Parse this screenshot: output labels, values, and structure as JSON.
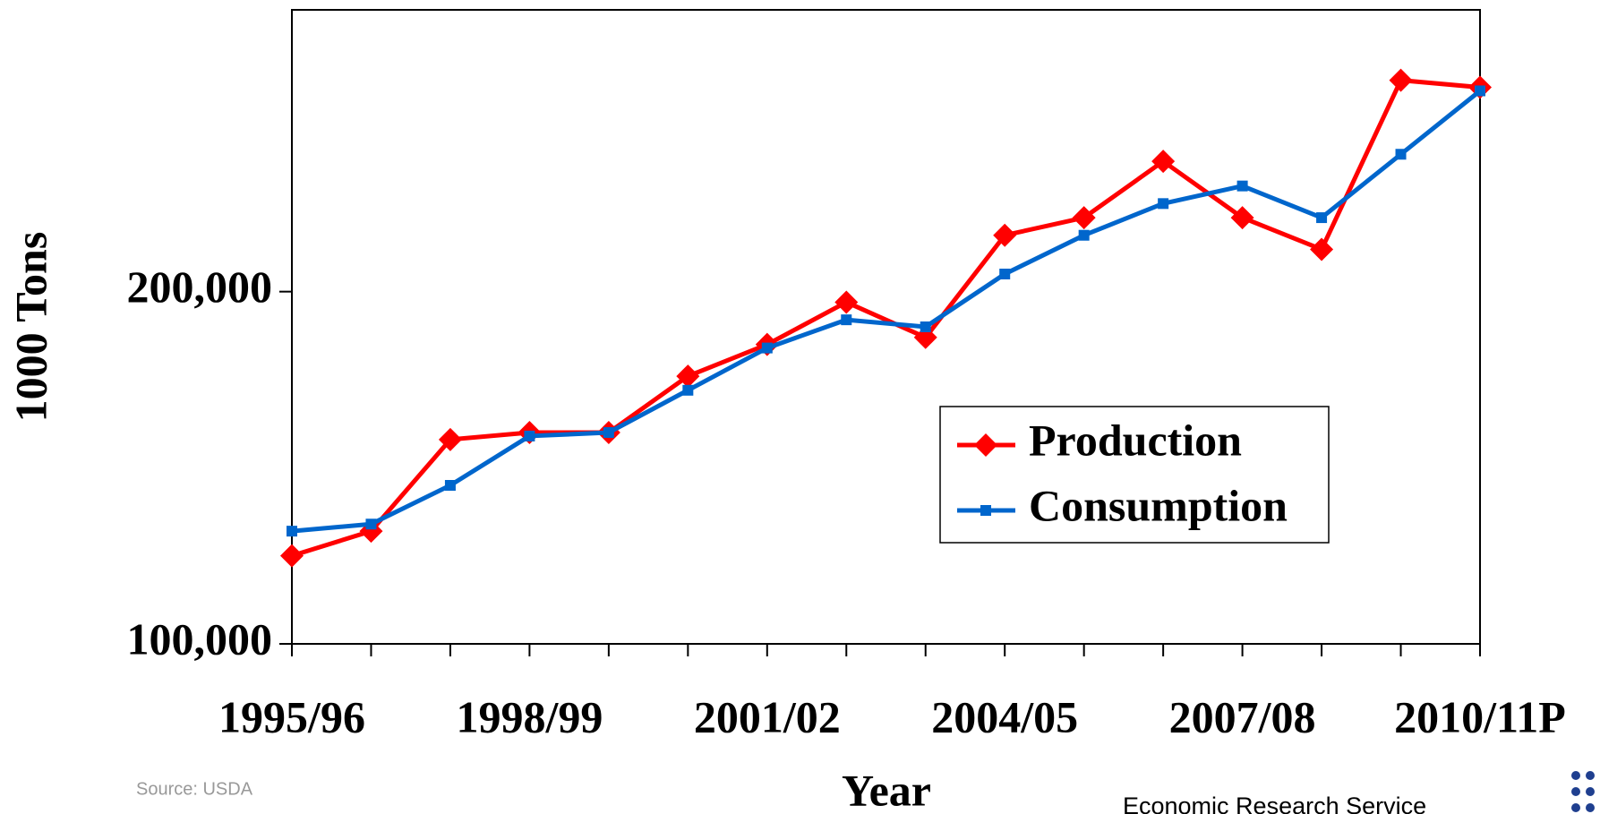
{
  "chart_data": {
    "type": "line",
    "x_label": "Year",
    "y_label": "1000 Tons",
    "source": "Source: USDA",
    "footer": "Economic Research Service",
    "categories": [
      "1995/96",
      null,
      null,
      "1998/99",
      null,
      null,
      "2001/02",
      null,
      null,
      "2004/05",
      null,
      null,
      "2007/08",
      null,
      null,
      "2010/11P"
    ],
    "series": [
      {
        "name": "Production",
        "color": "#ff0000",
        "marker": "diamond",
        "values": [
          125000,
          132000,
          158000,
          160000,
          160000,
          176000,
          185000,
          197000,
          187000,
          216000,
          221000,
          237000,
          221000,
          212000,
          260000,
          258000
        ]
      },
      {
        "name": "Consumption",
        "color": "#0066cc",
        "marker": "square",
        "values": [
          132000,
          134000,
          145000,
          159000,
          160000,
          172000,
          184000,
          192000,
          190000,
          205000,
          216000,
          225000,
          230000,
          221000,
          239000,
          257000
        ]
      }
    ],
    "ylim": [
      100000,
      280000
    ],
    "yticks": [
      {
        "value": 100000,
        "label": "100,000"
      },
      {
        "value": 200000,
        "label": "200,000"
      }
    ],
    "legend": "inside-right"
  }
}
